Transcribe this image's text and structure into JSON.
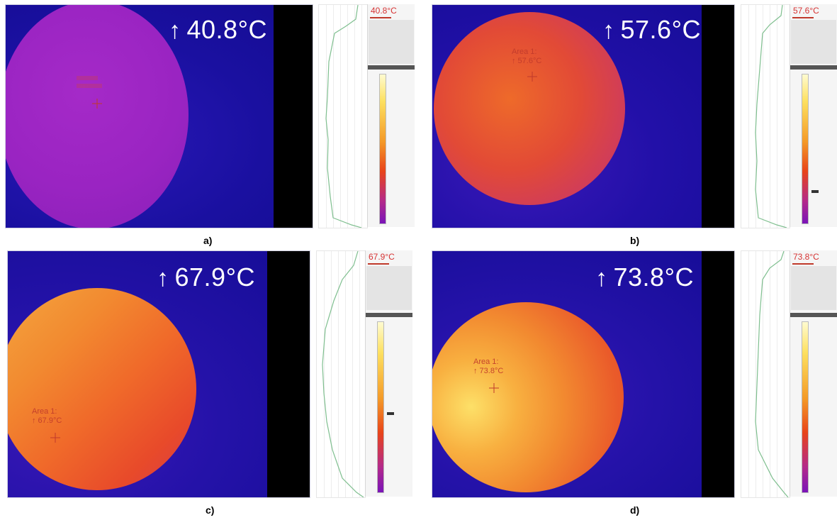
{
  "panels": [
    {
      "max_temp": "40.8°C",
      "readout": "40.8°C",
      "caption": "a)",
      "area_name": "",
      "area_temp": ""
    },
    {
      "max_temp": "57.6°C",
      "readout": "57.6°C",
      "caption": "b)",
      "area_name": "Area 1:",
      "area_temp": "↑ 57.6°C"
    },
    {
      "max_temp": "67.9°C",
      "readout": "67.9°C",
      "caption": "c)",
      "area_name": "Area 1:",
      "area_temp": "↑ 67.9°C"
    },
    {
      "max_temp": "73.8°C",
      "readout": "73.8°C",
      "caption": "d)",
      "area_name": "Area 1:",
      "area_temp": "↑ 73.8°C"
    }
  ],
  "arrow_symbol": "↑",
  "colors": {
    "background_cool": "#1a0fa8",
    "sample_cool": "#a020c8",
    "sample_mid": "#e8441a",
    "sample_hot": "#fde060",
    "readout_text": "#d63333"
  }
}
